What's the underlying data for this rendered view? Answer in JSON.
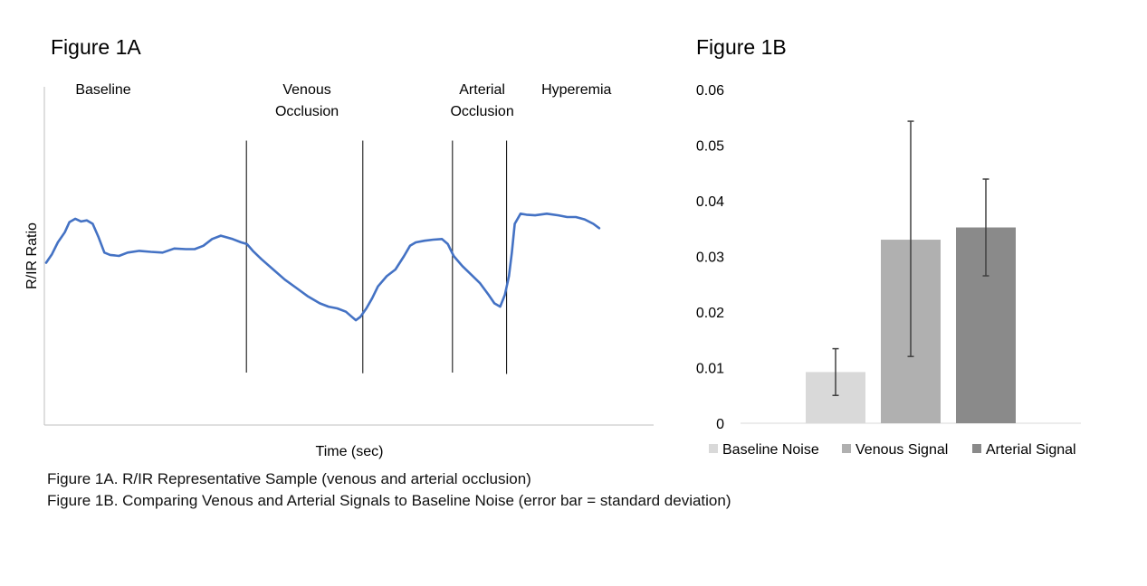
{
  "captions": {
    "fig1a": "Figure 1A. R/IR Representative Sample (venous and arterial occlusion)",
    "fig1b": "Figure 1B. Comparing Venous and Arterial Signals to Baseline Noise (error bar = standard deviation)"
  },
  "chart_data": [
    {
      "id": "fig1a",
      "type": "line",
      "title": "Figure 1A",
      "xlabel": "Time (sec)",
      "ylabel": "R/IR Ratio",
      "grid": false,
      "legend": "none",
      "line_color": "#4472c4",
      "x_range": [
        0,
        100
      ],
      "y_range": [
        0,
        100
      ],
      "phases": [
        {
          "label_lines": [
            "Baseline"
          ],
          "x": 9.8
        },
        {
          "label_lines": [
            "Venous",
            "Occlusion"
          ],
          "x": 44.8
        },
        {
          "label_lines": [
            "Arterial",
            "Occlusion"
          ],
          "x": 74.9
        },
        {
          "label_lines": [
            "Hyperemia"
          ],
          "x": 91.1
        }
      ],
      "dividers": [
        {
          "x": 34.4,
          "y_top": 84.1,
          "y_bottom": 15.5
        },
        {
          "x": 54.4,
          "y_top": 84.1,
          "y_bottom": 15.3
        },
        {
          "x": 69.8,
          "y_top": 84.1,
          "y_bottom": 15.5
        },
        {
          "x": 79.1,
          "y_top": 84.1,
          "y_bottom": 15.1
        }
      ],
      "series": [
        {
          "x": [
            0,
            1.0,
            2.0,
            3.2,
            4.0,
            5.0,
            6.0,
            7.0,
            8.0,
            9.0,
            10.0,
            11.0,
            12.5,
            14.0,
            16.0,
            18.0,
            20.0,
            22.0,
            24.0,
            25.5,
            27.0,
            28.5,
            30.0,
            32.0,
            33.5,
            34.5,
            35.5,
            37.0,
            39.0,
            41.0,
            43.0,
            45.0,
            47.0,
            48.5,
            50.0,
            51.5,
            52.5,
            53.2,
            54.0,
            55.0,
            56.0,
            57.0,
            58.5,
            60.0,
            61.5,
            62.5,
            63.5,
            65.0,
            66.5,
            68.0,
            69.0,
            70.0,
            71.5,
            73.0,
            74.5,
            76.0,
            77.0,
            78.0,
            78.8,
            79.5,
            80.0,
            80.5,
            81.5,
            82.5,
            84.0,
            86.0,
            88.0,
            89.5,
            91.0,
            92.5,
            94.0,
            95.0
          ],
          "y": [
            48.0,
            50.5,
            54.0,
            57.0,
            60.0,
            61.0,
            60.2,
            60.5,
            59.5,
            55.5,
            51.0,
            50.3,
            50.0,
            51.0,
            51.5,
            51.2,
            51.0,
            52.2,
            52.0,
            52.0,
            53.0,
            55.0,
            56.0,
            55.0,
            54.0,
            53.5,
            51.5,
            49.0,
            46.0,
            43.0,
            40.5,
            38.0,
            36.0,
            35.0,
            34.5,
            33.5,
            32.0,
            31.0,
            32.0,
            34.5,
            37.5,
            41.0,
            44.0,
            46.0,
            50.0,
            53.0,
            54.0,
            54.5,
            54.8,
            55.0,
            53.5,
            50.0,
            47.0,
            44.5,
            42.0,
            38.5,
            36.0,
            35.0,
            38.5,
            44.0,
            51.0,
            59.5,
            62.5,
            62.2,
            62.0,
            62.5,
            62.0,
            61.5,
            61.5,
            60.8,
            59.5,
            58.2
          ]
        }
      ]
    },
    {
      "id": "fig1b",
      "type": "bar",
      "title": "Figure 1B",
      "ylim": [
        0,
        0.06
      ],
      "yticks": [
        "0",
        "0.01",
        "0.02",
        "0.03",
        "0.04",
        "0.05",
        "0.06"
      ],
      "ytick_values": [
        0,
        0.01,
        0.02,
        0.03,
        0.04,
        0.05,
        0.06
      ],
      "grid": false,
      "legend": "bottom",
      "series": [
        {
          "name": "Baseline Noise",
          "value": 0.0092,
          "err_low": 0.005,
          "err_high": 0.0134,
          "color": "#d9d9d9"
        },
        {
          "name": "Venous Signal",
          "value": 0.033,
          "err_low": 0.012,
          "err_high": 0.0543,
          "color": "#b0b0b0"
        },
        {
          "name": "Arterial Signal",
          "value": 0.0352,
          "err_low": 0.0265,
          "err_high": 0.0439,
          "color": "#8a8a8a"
        }
      ]
    }
  ]
}
